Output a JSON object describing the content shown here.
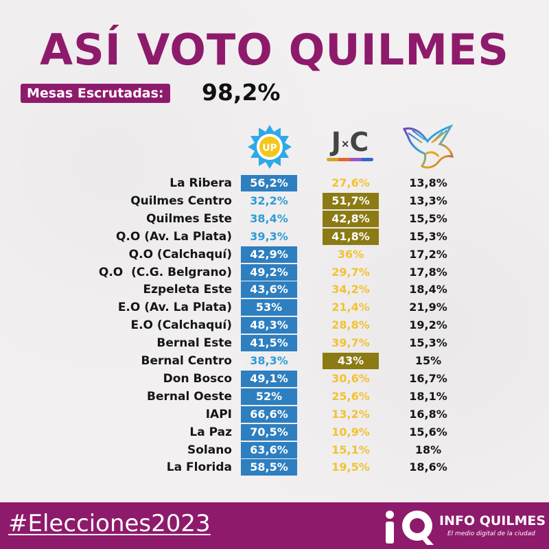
{
  "header": {
    "title": "ASÍ VOTO QUILMES",
    "mesas_label": "Mesas Escrutadas:",
    "mesas_value": "98,2%"
  },
  "logos": {
    "up": "UP",
    "jxc": "J",
    "jxc_x": "×",
    "jxc_c": "C"
  },
  "colors": {
    "title_purple": "#8e1a6b",
    "up_blue": "#2d7fc0",
    "up_text_light": "#2d9bd6",
    "jxc_gold": "#f2c230",
    "jxc_highlight": "#8c7a14"
  },
  "chart_data": {
    "type": "table",
    "columns": [
      "UP",
      "JxC",
      "LLA"
    ],
    "rows": [
      {
        "zone": "La Ribera",
        "up": "56,2%",
        "jxc": "27,6%",
        "lla": "13,8%",
        "winner": "up"
      },
      {
        "zone": "Quilmes Centro",
        "up": "32,2%",
        "jxc": "51,7%",
        "lla": "13,3%",
        "winner": "jxc"
      },
      {
        "zone": "Quilmes Este",
        "up": "38,4%",
        "jxc": "42,8%",
        "lla": "15,5%",
        "winner": "jxc"
      },
      {
        "zone": "Q.O (Av. La Plata)",
        "up": "39,3%",
        "jxc": "41,8%",
        "lla": "15,3%",
        "winner": "jxc"
      },
      {
        "zone": "Q.O (Calchaquí)",
        "up": "42,9%",
        "jxc": "36%",
        "lla": "17,2%",
        "winner": "up"
      },
      {
        "zone": "Q.O  (C.G. Belgrano)",
        "up": "49,2%",
        "jxc": "29,7%",
        "lla": "17,8%",
        "winner": "up"
      },
      {
        "zone": "Ezpeleta Este",
        "up": "43,6%",
        "jxc": "34,2%",
        "lla": "18,4%",
        "winner": "up"
      },
      {
        "zone": "E.O (Av. La Plata)",
        "up": "53%",
        "jxc": "21,4%",
        "lla": "21,9%",
        "winner": "up"
      },
      {
        "zone": "E.O (Calchaquí)",
        "up": "48,3%",
        "jxc": "28,8%",
        "lla": "19,2%",
        "winner": "up"
      },
      {
        "zone": "Bernal Este",
        "up": "41,5%",
        "jxc": "39,7%",
        "lla": "15,3%",
        "winner": "up"
      },
      {
        "zone": "Bernal Centro",
        "up": "38,3%",
        "jxc": "43%",
        "lla": "15%",
        "winner": "jxc"
      },
      {
        "zone": "Don Bosco",
        "up": "49,1%",
        "jxc": "30,6%",
        "lla": "16,7%",
        "winner": "up"
      },
      {
        "zone": "Bernal Oeste",
        "up": "52%",
        "jxc": "25,6%",
        "lla": "18,1%",
        "winner": "up"
      },
      {
        "zone": "IAPI",
        "up": "66,6%",
        "jxc": "13,2%",
        "lla": "16,8%",
        "winner": "up"
      },
      {
        "zone": "La Paz",
        "up": "70,5%",
        "jxc": "10,9%",
        "lla": "15,6%",
        "winner": "up"
      },
      {
        "zone": "Solano",
        "up": "63,6%",
        "jxc": "15,1%",
        "lla": "18%",
        "winner": "up"
      },
      {
        "zone": "La Florida",
        "up": "58,5%",
        "jxc": "19,5%",
        "lla": "18,6%",
        "winner": "up"
      }
    ]
  },
  "footer": {
    "hashtag": "#Elecciones2023",
    "brand_name": "INFO QUILMES",
    "brand_tagline": "El medio digital de la ciudad"
  }
}
